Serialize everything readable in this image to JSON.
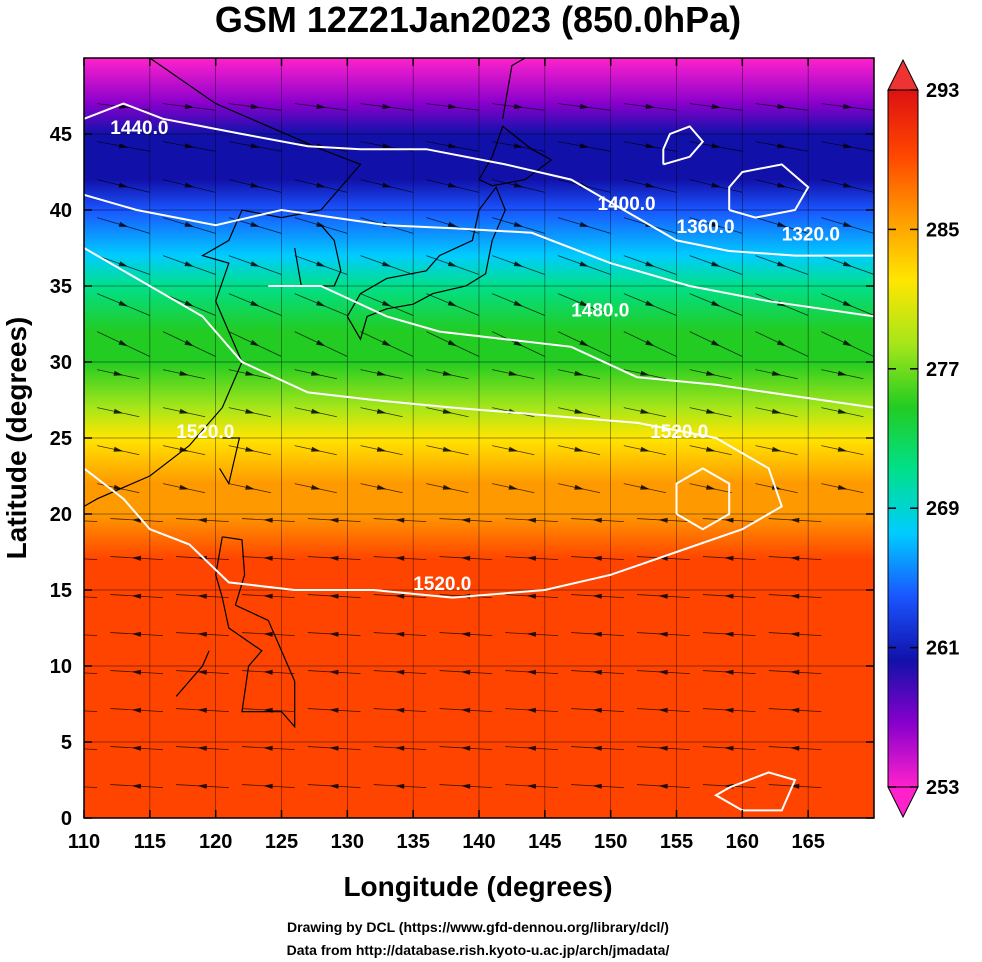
{
  "chart_data": {
    "type": "heatmap",
    "title": "GSM 12Z21Jan2023 (850.0hPa)",
    "xlabel": "Longitude (degrees)",
    "ylabel": "Latitude  (degrees)",
    "xlim": [
      110,
      170
    ],
    "ylim": [
      0,
      50
    ],
    "x_ticks": [
      110,
      115,
      120,
      125,
      130,
      135,
      140,
      145,
      150,
      155,
      160,
      165
    ],
    "y_ticks": [
      0,
      5,
      10,
      15,
      20,
      25,
      30,
      35,
      40,
      45
    ],
    "grid": true,
    "colorbar": {
      "min": 253,
      "max": 293,
      "ticks": [
        253,
        261,
        269,
        277,
        285,
        293
      ],
      "colors": [
        "#ff22cc",
        "#8800cc",
        "#1111aa",
        "#1a55ff",
        "#00ccff",
        "#00e08a",
        "#22cc22",
        "#a6e61a",
        "#ffe600",
        "#ff9900",
        "#ff4400",
        "#dd1111"
      ]
    },
    "temperature_field": {
      "latitudes": [
        50,
        47,
        45,
        42,
        40,
        37,
        35,
        32,
        30,
        27,
        25,
        22,
        20,
        17,
        15,
        10,
        5,
        0
      ],
      "values": [
        254,
        256,
        259,
        261,
        264,
        268,
        270,
        273,
        276,
        279,
        282,
        285,
        287,
        289,
        290,
        291,
        291,
        291
      ]
    },
    "contours": [
      {
        "label": "1440.0",
        "lon": 112,
        "lat": 45
      },
      {
        "label": "1400.0",
        "lon": 149,
        "lat": 40
      },
      {
        "label": "1360.0",
        "lon": 155,
        "lat": 38.5
      },
      {
        "label": "1320.0",
        "lon": 163,
        "lat": 38
      },
      {
        "label": "1480.0",
        "lon": 147,
        "lat": 33
      },
      {
        "label": "1520.0",
        "lon": 153,
        "lat": 25
      },
      {
        "label": "1520.0",
        "lon": 117,
        "lat": 25
      },
      {
        "label": "1520.0",
        "lon": 135,
        "lat": 15
      }
    ],
    "annotations": [
      "Drawing by DCL (https://www.gfd-dennou.org/library/dcl/)",
      "Data from http://database.rish.kyoto-u.ac.jp/arch/jmadata/"
    ]
  }
}
